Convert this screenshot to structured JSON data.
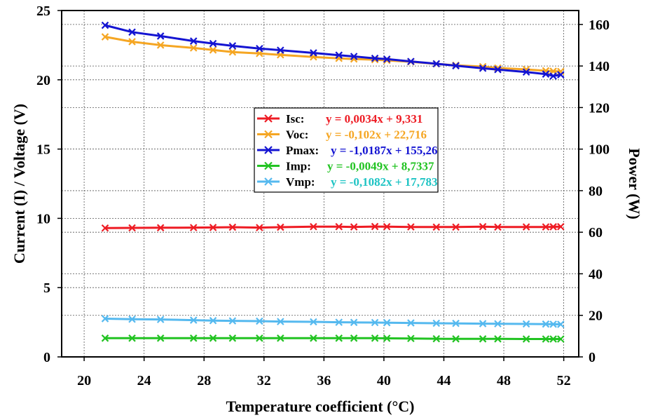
{
  "chart_data": {
    "type": "line",
    "xlabel": "Temperature coefficient (°C)",
    "ylabel_left": "Current (I) / Voltage (V)",
    "ylabel_right": "Power (W)",
    "xlim": [
      18.5,
      53
    ],
    "ylim_left": [
      0,
      25
    ],
    "ylim_right": [
      0,
      166.7
    ],
    "x_ticks": [
      20,
      24,
      28,
      32,
      36,
      40,
      44,
      48,
      52
    ],
    "y_left_ticks": [
      0,
      5,
      10,
      15,
      20,
      25
    ],
    "y_right_ticks": [
      0,
      20,
      40,
      60,
      80,
      100,
      120,
      140,
      160
    ],
    "grid": true,
    "legend_position": "center",
    "x": [
      21.4,
      23.2,
      25.1,
      27.3,
      28.6,
      29.9,
      31.7,
      33.1,
      35.3,
      37.0,
      38.0,
      39.4,
      40.2,
      41.8,
      43.5,
      44.8,
      46.6,
      47.6,
      49.5,
      50.8,
      51.3,
      51.8
    ],
    "series": [
      {
        "name": "Isc",
        "equation": "y = 0,0034x + 9,331",
        "axis": "left",
        "color": "#ee1c24",
        "eq_color": "#ee1c24",
        "values": [
          9.3,
          9.31,
          9.32,
          9.33,
          9.34,
          9.36,
          9.33,
          9.36,
          9.4,
          9.4,
          9.38,
          9.41,
          9.4,
          9.38,
          9.37,
          9.37,
          9.4,
          9.37,
          9.38,
          9.38,
          9.39,
          9.4
        ]
      },
      {
        "name": "Voc",
        "equation": "y = -0,102x + 22,716",
        "axis": "left",
        "color": "#f5a623",
        "eq_color": "#f5a623",
        "values": [
          23.1,
          22.75,
          22.5,
          22.3,
          22.15,
          22.0,
          21.9,
          21.8,
          21.65,
          21.55,
          21.5,
          21.45,
          21.4,
          21.3,
          21.15,
          21.05,
          20.95,
          20.85,
          20.75,
          20.65,
          20.62,
          20.6
        ]
      },
      {
        "name": "Pmax",
        "equation": "y = -1,0187x + 155,26",
        "axis": "right",
        "color": "#1414d2",
        "eq_color": "#1414d2",
        "values": [
          159.6,
          156.3,
          154.4,
          152.0,
          150.8,
          149.7,
          148.4,
          147.6,
          146.3,
          145.2,
          144.6,
          143.7,
          143.3,
          142.2,
          141.1,
          140.1,
          138.9,
          138.3,
          137.1,
          136.1,
          135.2,
          135.8
        ]
      },
      {
        "name": "Imp",
        "equation": "y = -0,0049x + 8,7337",
        "axis": "left",
        "color": "#22c322",
        "eq_color": "#22c322",
        "values": [
          1.35,
          1.35,
          1.35,
          1.35,
          1.35,
          1.35,
          1.35,
          1.35,
          1.35,
          1.35,
          1.35,
          1.35,
          1.34,
          1.33,
          1.31,
          1.3,
          1.3,
          1.3,
          1.29,
          1.29,
          1.29,
          1.29
        ]
      },
      {
        "name": "Vmp",
        "equation": "y = -0,1082x + 17,783",
        "axis": "left",
        "color": "#55b9ef",
        "eq_color": "#1fc4c4",
        "values": [
          2.76,
          2.72,
          2.7,
          2.65,
          2.62,
          2.6,
          2.58,
          2.55,
          2.53,
          2.5,
          2.49,
          2.48,
          2.47,
          2.45,
          2.43,
          2.42,
          2.4,
          2.39,
          2.38,
          2.37,
          2.36,
          2.35
        ]
      }
    ]
  }
}
